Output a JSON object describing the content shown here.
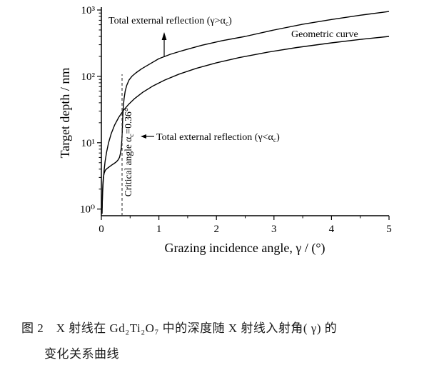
{
  "chart_data": {
    "type": "line",
    "title": "",
    "xlabel": "Grazing incidence angle, γ / (°)",
    "ylabel": "Target depth / nm",
    "xlim": [
      0,
      5
    ],
    "ylim": [
      1,
      1000
    ],
    "y_scale": "log",
    "grid": "off",
    "legend": "none (labels annotated on plot)",
    "x_ticks": [
      "0",
      "1",
      "2",
      "3",
      "4",
      "5"
    ],
    "x_minor_ticks": [
      0.5,
      1.5,
      2.5,
      3.5,
      4.5
    ],
    "y_ticks": [
      {
        "label": "10⁰",
        "value": 1
      },
      {
        "label": "10¹",
        "value": 10
      },
      {
        "label": "10²",
        "value": 100
      },
      {
        "label": "10³",
        "value": 1000
      }
    ],
    "critical_angle_deg": 0.36,
    "series": [
      {
        "name": "total-external-reflection-penetration-depth",
        "x": [
          0.012,
          0.018,
          0.025,
          0.035,
          0.05,
          0.07,
          0.1,
          0.14,
          0.18,
          0.22,
          0.26,
          0.29,
          0.315,
          0.33,
          0.345,
          0.355,
          0.362,
          0.37,
          0.38,
          0.395,
          0.415,
          0.44,
          0.48,
          0.53,
          0.6,
          0.7,
          0.85,
          1.0,
          1.2,
          1.45,
          1.75,
          2.1,
          2.5,
          3.0,
          3.5,
          4.0,
          4.5,
          5.0
        ],
        "y": [
          0.85,
          1.6,
          2.3,
          3.0,
          3.5,
          3.85,
          4.1,
          4.35,
          4.6,
          4.85,
          5.15,
          5.5,
          6.0,
          6.8,
          8.2,
          10.5,
          14,
          22,
          33,
          46,
          60,
          73,
          88,
          100,
          113,
          130,
          155,
          185,
          215,
          250,
          295,
          345,
          400,
          500,
          610,
          720,
          835,
          950
        ]
      },
      {
        "name": "geometric-curve",
        "x": [
          0.013,
          0.02,
          0.03,
          0.045,
          0.065,
          0.09,
          0.125,
          0.17,
          0.23,
          0.3,
          0.38,
          0.47,
          0.58,
          0.72,
          0.9,
          1.1,
          1.35,
          1.65,
          2.0,
          2.4,
          2.9,
          3.4,
          4.0,
          4.5,
          5.0
        ],
        "y": [
          1.04,
          1.6,
          2.4,
          3.6,
          5.2,
          7.2,
          10,
          13.6,
          18.4,
          24,
          30.4,
          37.6,
          46.4,
          57.6,
          72,
          88,
          108,
          132,
          160,
          192,
          232,
          272,
          320,
          360,
          400
        ]
      }
    ],
    "annotations": {
      "upper": {
        "pre": "Total external reflection (γ>α",
        "sub": "c",
        "post": ")"
      },
      "lower": {
        "pre": "Total external reflection (γ<α",
        "sub": "c",
        "post": ")"
      },
      "critical": {
        "pre": "Critical angle α",
        "sub": "c",
        "post": "=0.36°"
      },
      "geometric_label": "Geometric curve"
    }
  },
  "figure": {
    "caption_line1": "图 2　X 射线在 Gd₂Ti₂O₇ 中的深度随 X 射线入射角( γ) 的",
    "caption_line2": "变化关系曲线"
  }
}
